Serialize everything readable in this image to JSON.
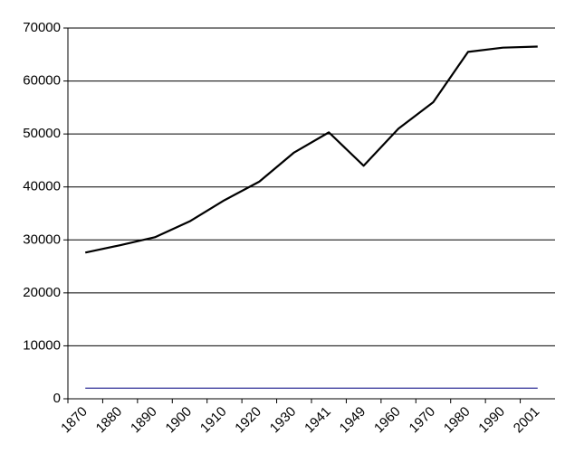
{
  "chart_data": {
    "type": "line",
    "categories": [
      "1870",
      "1880",
      "1890",
      "1900",
      "1910",
      "1920",
      "1930",
      "1941",
      "1949",
      "1960",
      "1970",
      "1980",
      "1990",
      "2001"
    ],
    "series": [
      {
        "color": "#000000",
        "values": [
          27600,
          29000,
          30500,
          33500,
          37500,
          41000,
          46500,
          50300,
          44000,
          51000,
          56000,
          65500,
          66300,
          66500
        ]
      },
      {
        "color": "#333399",
        "values": [
          2000,
          2000,
          2000,
          2000,
          2000,
          2000,
          2000,
          2000,
          2000,
          2000,
          2000,
          2000,
          2000,
          2000
        ]
      }
    ],
    "ylim": [
      0,
      70000
    ],
    "yticks": [
      0,
      10000,
      20000,
      30000,
      40000,
      50000,
      60000,
      70000
    ],
    "grid": true
  }
}
